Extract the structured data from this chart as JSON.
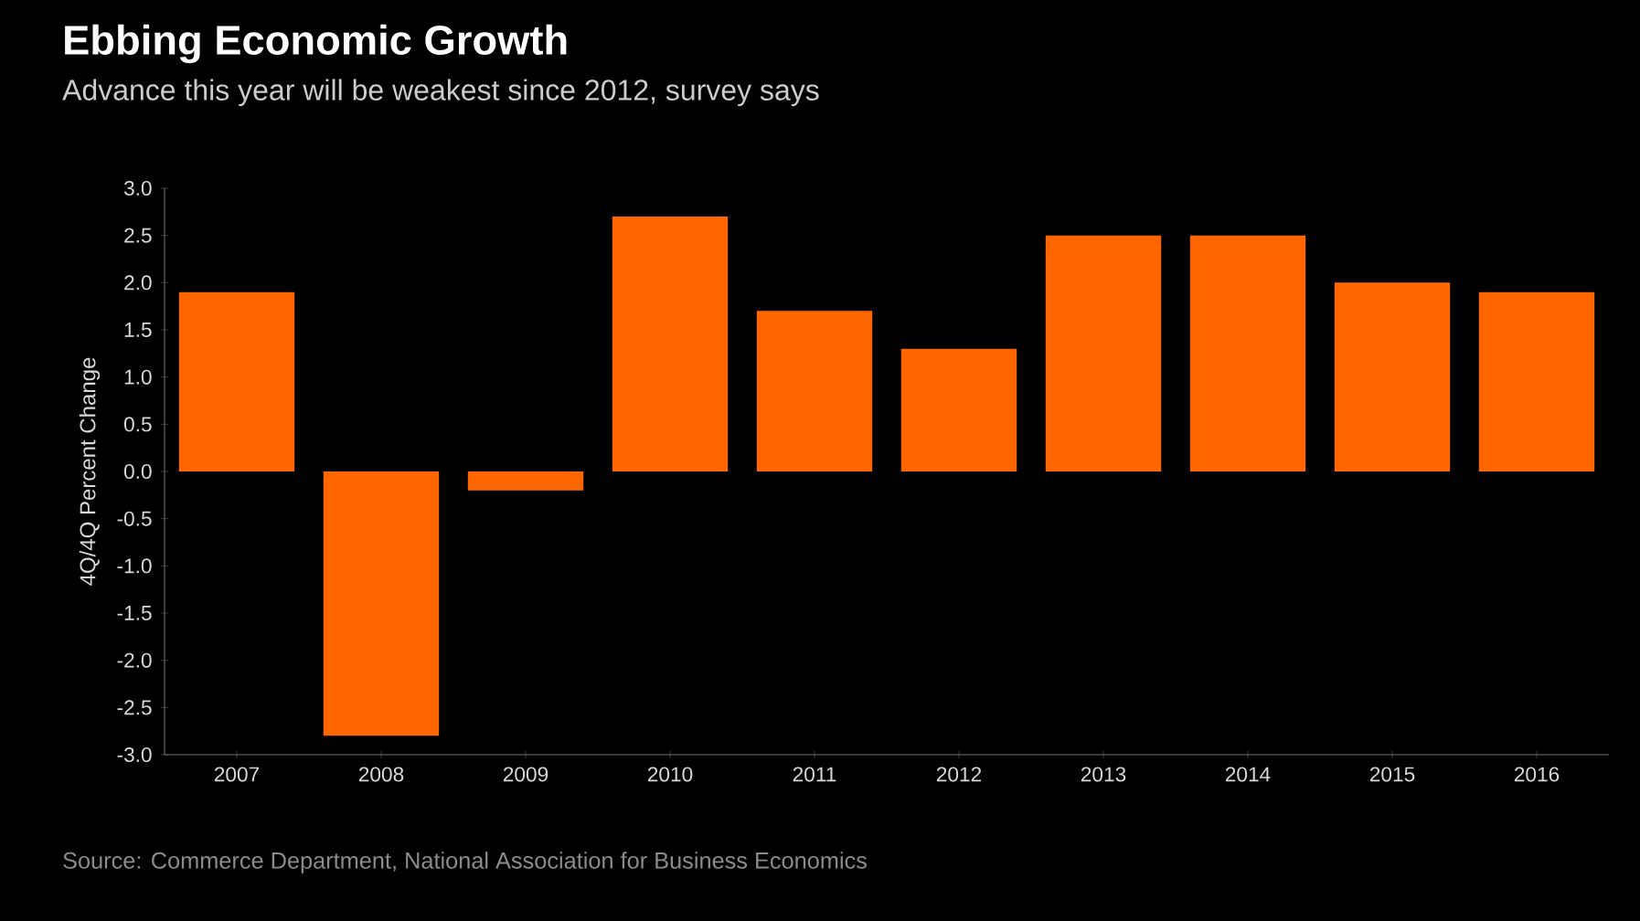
{
  "chart_data": {
    "type": "bar",
    "title": "Ebbing Economic Growth",
    "subtitle": "Advance this year will be weakest since 2012, survey says",
    "ylabel": "4Q/4Q Percent Change",
    "categories": [
      "2007",
      "2008",
      "2009",
      "2010",
      "2011",
      "2012",
      "2013",
      "2014",
      "2015",
      "2016"
    ],
    "values": [
      1.9,
      -2.8,
      -0.2,
      2.7,
      1.7,
      1.3,
      2.5,
      2.5,
      2.0,
      1.9
    ],
    "color": "#ff6600",
    "ylim": [
      -3,
      3
    ],
    "yticks": [
      {
        "value": -3,
        "label": "-3.0"
      },
      {
        "value": -2.5,
        "label": "-2.5"
      },
      {
        "value": -2,
        "label": "-2.0"
      },
      {
        "value": -1.5,
        "label": "-1.5"
      },
      {
        "value": -1,
        "label": "-1.0"
      },
      {
        "value": -0.5,
        "label": "-0.5"
      },
      {
        "value": 0,
        "label": "0.0"
      },
      {
        "value": 0.5,
        "label": "0.5"
      },
      {
        "value": 1,
        "label": "1.0"
      },
      {
        "value": 1.5,
        "label": "1.5"
      },
      {
        "value": 2,
        "label": "2.0"
      },
      {
        "value": 2.5,
        "label": "2.5"
      },
      {
        "value": 3,
        "label": "3.0"
      }
    ],
    "grid": false,
    "annotations": [
      "Source: Commerce Department, National Association for Business Economics"
    ]
  }
}
